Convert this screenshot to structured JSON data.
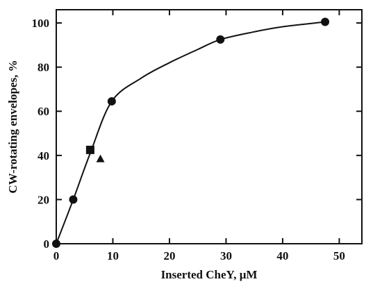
{
  "chart_data": {
    "type": "scatter",
    "xlabel": "Inserted CheY, μM",
    "ylabel": "CW-rotating envelopes, %",
    "xlim": [
      0,
      54
    ],
    "ylim": [
      0,
      106
    ],
    "xticks": [
      0,
      10,
      20,
      30,
      40,
      50
    ],
    "yticks": [
      0,
      20,
      40,
      60,
      80,
      100
    ],
    "grid": false,
    "series": [
      {
        "marker": "circle",
        "points": [
          {
            "x": 0,
            "y": 0
          },
          {
            "x": 3,
            "y": 20
          },
          {
            "x": 9.8,
            "y": 64.5
          },
          {
            "x": 29,
            "y": 92.5
          },
          {
            "x": 47.5,
            "y": 100.5
          }
        ]
      },
      {
        "marker": "square",
        "points": [
          {
            "x": 6,
            "y": 42.5
          }
        ]
      },
      {
        "marker": "triangle",
        "points": [
          {
            "x": 7.8,
            "y": 38.5
          }
        ]
      }
    ],
    "fit_curve": [
      {
        "x": 0,
        "y": 0
      },
      {
        "x": 3,
        "y": 20
      },
      {
        "x": 6,
        "y": 41
      },
      {
        "x": 9.8,
        "y": 64.5
      },
      {
        "x": 15,
        "y": 75
      },
      {
        "x": 20,
        "y": 82
      },
      {
        "x": 25,
        "y": 88
      },
      {
        "x": 29,
        "y": 92.5
      },
      {
        "x": 35,
        "y": 96
      },
      {
        "x": 40,
        "y": 98.3
      },
      {
        "x": 47.5,
        "y": 100.5
      }
    ]
  }
}
